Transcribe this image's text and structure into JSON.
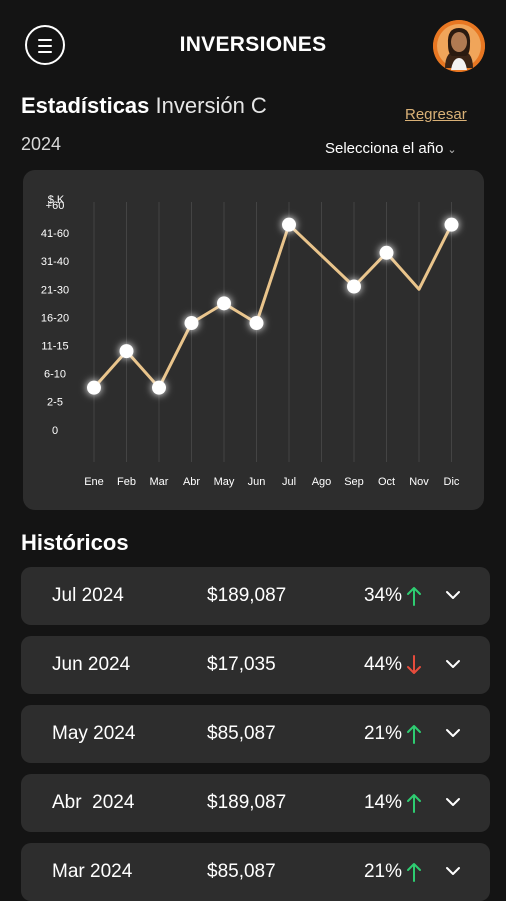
{
  "header": {
    "title": "INVERSIONES"
  },
  "stats": {
    "title": "Estadísticas",
    "subtitle": "Inversión C",
    "back_label": "Regresar",
    "year": "2024",
    "year_select_label": "Selecciona el año"
  },
  "chart_data": {
    "type": "line",
    "y_unit_label": "$ K",
    "y_tick_labels": [
      "0",
      "2-5",
      "6-10",
      "11-15",
      "16-20",
      "21-30",
      "31-40",
      "41-60",
      "+60"
    ],
    "categories": [
      "Ene",
      "Feb",
      "Mar",
      "Abr",
      "May",
      "Jun",
      "Jul",
      "Ago",
      "Sep",
      "Oct",
      "Nov",
      "Dic"
    ],
    "series": [
      {
        "values": [
          1.5,
          2.8,
          1.5,
          3.8,
          4.5,
          3.8,
          7.3,
          null,
          5.1,
          6.3,
          5.0,
          7.3
        ],
        "markers": [
          true,
          true,
          true,
          true,
          true,
          true,
          true,
          false,
          true,
          true,
          false,
          true
        ]
      }
    ],
    "ylim": [
      0,
      8
    ],
    "line_color": "#e9c48b",
    "grid": "vertical"
  },
  "history": {
    "title": "Históricos",
    "rows": [
      {
        "month": "Jul 2024",
        "amount": "$189,087",
        "pct": "34%",
        "trend": "up"
      },
      {
        "month": "Jun 2024",
        "amount": "$17,035",
        "pct": "44%",
        "trend": "down"
      },
      {
        "month": "May 2024",
        "amount": "$85,087",
        "pct": "21%",
        "trend": "up"
      },
      {
        "month": "Abr  2024",
        "amount": "$189,087",
        "pct": "14%",
        "trend": "up"
      },
      {
        "month": "Mar 2024",
        "amount": "$85,087",
        "pct": "21%",
        "trend": "up"
      }
    ]
  },
  "colors": {
    "up": "#2ecc71",
    "down": "#e74c3c",
    "accent": "#d9b177"
  }
}
